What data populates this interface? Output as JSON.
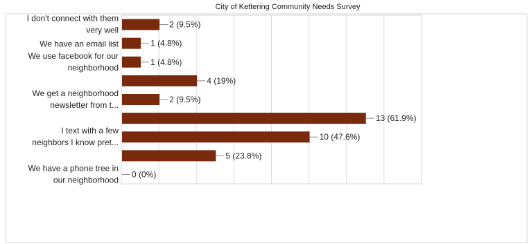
{
  "chart_data": {
    "type": "bar",
    "orientation": "horizontal",
    "title": "City of Kettering Community Needs Survey",
    "categories": [
      [
        "I don't connect with them",
        "very well"
      ],
      [
        "We have an email list"
      ],
      [
        "We use facebook for our",
        "neighborhood"
      ],
      [],
      [
        "We get a neighborhood",
        "newsletter from t..."
      ],
      [],
      [
        "I text with a few",
        "neighbors I know pret..."
      ],
      [],
      [
        "We have a phone tree in",
        "our neighborhood"
      ]
    ],
    "values": [
      2,
      1,
      1,
      4,
      2,
      13,
      10,
      5,
      0
    ],
    "data_labels": [
      "2 (9.5%)",
      "1 (4.8%)",
      "1 (4.8%)",
      "4 (19%)",
      "2 (9.5%)",
      "13 (61.9%)",
      "10 (47.6%)",
      "5 (23.8%)",
      "0 (0%)"
    ],
    "xlim": [
      0,
      16
    ],
    "grid": true,
    "colors": {
      "bar": "#7a2a0c",
      "grid": "#dddddd",
      "leader": "#888888",
      "text": "#222222",
      "frame": "#d6d6d6"
    }
  }
}
